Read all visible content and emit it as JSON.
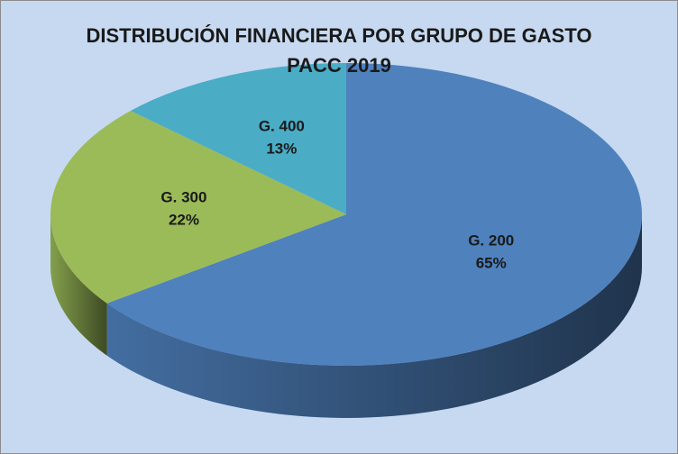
{
  "chart_data": {
    "type": "pie",
    "title": "DISTRIBUCIÓN FINANCIERA POR GRUPO DE GASTO PACC 2019",
    "categories": [
      "G. 200",
      "G. 300",
      "G. 400"
    ],
    "values": [
      65,
      22,
      13
    ],
    "value_labels": [
      "65%",
      "22%",
      "13%"
    ],
    "colors": [
      "#4f81bd",
      "#9bbb59",
      "#4bacc6"
    ]
  }
}
